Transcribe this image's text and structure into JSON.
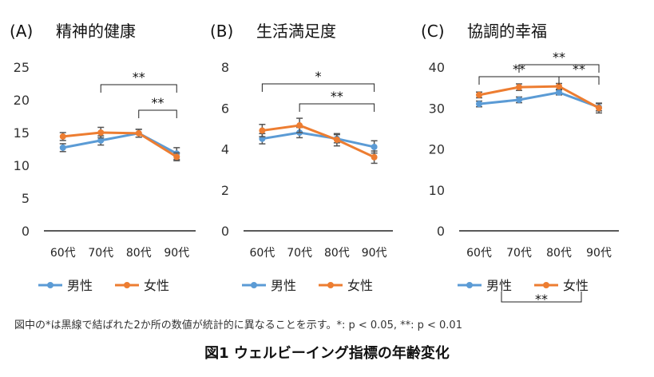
{
  "colors": {
    "male": "#5B9BD5",
    "female": "#ED7D31",
    "axis": "#222222",
    "error": "#555555"
  },
  "legend": {
    "male": "男性",
    "female": "女性"
  },
  "note": "図中の*は黒線で結ばれた2か所の数値が統計的に異なることを示す。*: p < 0.05, **: p < 0.01",
  "figure_title": "図1 ウェルビーイング指標の年齢変化",
  "chart_data": [
    {
      "type": "line",
      "panel": "(A)",
      "title": "精神的健康",
      "categories": [
        "60代",
        "70代",
        "80代",
        "90代"
      ],
      "ylim": [
        0,
        25
      ],
      "yticks": [
        0,
        5,
        10,
        15,
        20,
        25
      ],
      "series": [
        {
          "name": "男性",
          "key": "male",
          "values": [
            12.7,
            13.8,
            14.9,
            11.8
          ],
          "errors": [
            0.6,
            0.7,
            0.6,
            0.9
          ]
        },
        {
          "name": "女性",
          "key": "female",
          "values": [
            14.4,
            15.0,
            14.9,
            11.3
          ],
          "errors": [
            0.6,
            0.8,
            0.6,
            0.6
          ]
        }
      ],
      "significance": [
        {
          "from": 1,
          "to": 3,
          "label": "**",
          "level": 2
        },
        {
          "from": 2,
          "to": 3,
          "label": "**",
          "level": 1
        }
      ]
    },
    {
      "type": "line",
      "panel": "(B)",
      "title": "生活満足度",
      "categories": [
        "60代",
        "70代",
        "80代",
        "90代"
      ],
      "ylim": [
        0,
        8
      ],
      "yticks": [
        0,
        2,
        4,
        6,
        8
      ],
      "series": [
        {
          "name": "男性",
          "key": "male",
          "values": [
            4.5,
            4.8,
            4.5,
            4.1
          ],
          "errors": [
            0.25,
            0.25,
            0.2,
            0.3
          ]
        },
        {
          "name": "女性",
          "key": "female",
          "values": [
            4.9,
            5.15,
            4.45,
            3.6
          ],
          "errors": [
            0.3,
            0.35,
            0.3,
            0.3
          ]
        }
      ],
      "significance": [
        {
          "from": 0,
          "to": 3,
          "label": "*",
          "level": 2
        },
        {
          "from": 1,
          "to": 3,
          "label": "**",
          "level": 1
        }
      ]
    },
    {
      "type": "line",
      "panel": "(C)",
      "title": "協調的幸福",
      "categories": [
        "60代",
        "70代",
        "80代",
        "90代"
      ],
      "ylim": [
        0,
        40
      ],
      "yticks": [
        0,
        10,
        20,
        30,
        40
      ],
      "series": [
        {
          "name": "男性",
          "key": "male",
          "values": [
            31.0,
            32.0,
            33.8,
            30.2
          ],
          "errors": [
            0.7,
            0.7,
            0.6,
            0.9
          ]
        },
        {
          "name": "女性",
          "key": "female",
          "values": [
            33.2,
            35.1,
            35.3,
            30.0
          ],
          "errors": [
            0.7,
            0.8,
            0.7,
            1.2
          ]
        }
      ],
      "significance": [
        {
          "from": 0,
          "to": 2,
          "label": "**",
          "level": 1
        },
        {
          "from": 1,
          "to": 3,
          "label": "**",
          "level": 2
        },
        {
          "from": 2,
          "to": 3,
          "label": "**",
          "level": 1
        }
      ],
      "legend_significance": {
        "label": "**"
      }
    }
  ]
}
